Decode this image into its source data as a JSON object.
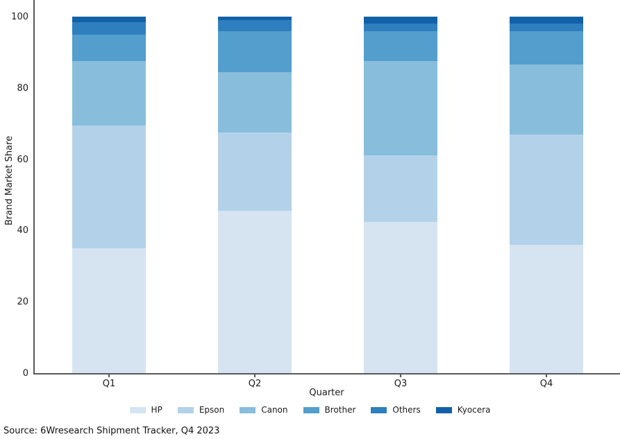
{
  "chart_data": {
    "type": "bar",
    "stacked": true,
    "title": "",
    "xlabel": "Quarter",
    "ylabel": "Brand Market Share",
    "categories": [
      "Q1",
      "Q2",
      "Q3",
      "Q4"
    ],
    "series": [
      {
        "name": "HP",
        "color": "#d6e4f2",
        "values": [
          35.0,
          45.5,
          42.5,
          36.0
        ]
      },
      {
        "name": "Epson",
        "color": "#b3d2e9",
        "values": [
          34.5,
          22.0,
          18.5,
          31.0
        ]
      },
      {
        "name": "Canon",
        "color": "#88bddc",
        "values": [
          18.0,
          17.0,
          26.5,
          19.5
        ]
      },
      {
        "name": "Brother",
        "color": "#539ecc",
        "values": [
          7.5,
          11.5,
          8.5,
          9.5
        ]
      },
      {
        "name": "Others",
        "color": "#2f7fbe",
        "values": [
          3.5,
          3.0,
          2.0,
          2.0
        ]
      },
      {
        "name": "Kyocera",
        "color": "#1261a8",
        "values": [
          1.5,
          1.0,
          2.0,
          2.0
        ]
      }
    ],
    "yticks": [
      0,
      20,
      40,
      60,
      80,
      100
    ],
    "ylim": [
      0,
      105
    ],
    "grid": false,
    "legend_position": "bottom",
    "axis_color": "#58585a"
  },
  "source_note": "Source: 6Wresearch Shipment Tracker, Q4 2023"
}
